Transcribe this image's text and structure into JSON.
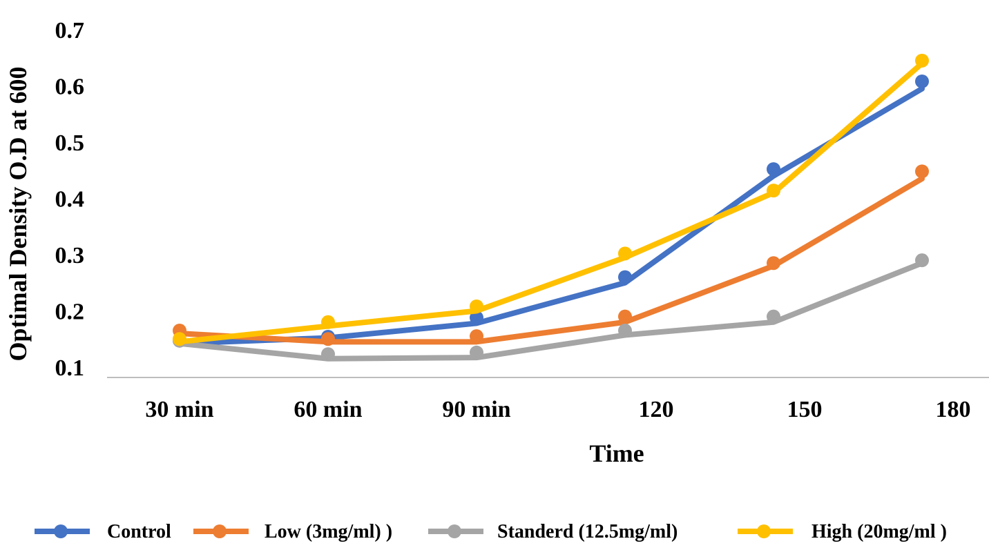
{
  "chart_data": {
    "type": "line",
    "title": "",
    "xlabel": "Time",
    "ylabel": "Optimal Density O.D at 600",
    "categories": [
      "30 min",
      "60 min",
      "90 min",
      "120",
      "150",
      "180"
    ],
    "ylim": [
      0.1,
      0.7
    ],
    "yticks": [
      "0.1",
      "0.2",
      "0.3",
      "0.4",
      "0.5",
      "0.6",
      "0.7"
    ],
    "grid": false,
    "legend_position": "bottom",
    "series": [
      {
        "name": "Control",
        "color": "#4472C4",
        "values": [
          0.147,
          0.154,
          0.188,
          0.26,
          0.452,
          0.608
        ],
        "trend": [
          0.142,
          0.152,
          0.178,
          0.25,
          0.44,
          0.595
        ]
      },
      {
        "name": "Low (3mg/ml) )",
        "color": "#ED7D31",
        "values": [
          0.165,
          0.15,
          0.155,
          0.19,
          0.285,
          0.448
        ],
        "trend": [
          0.16,
          0.145,
          0.145,
          0.18,
          0.28,
          0.435
        ]
      },
      {
        "name": "Standerd (12.5mg/ml)",
        "color": "#A5A5A5",
        "values": [
          0.147,
          0.123,
          0.126,
          0.165,
          0.19,
          0.29
        ],
        "trend": [
          0.142,
          0.115,
          0.117,
          0.157,
          0.18,
          0.285
        ]
      },
      {
        "name": "High (20mg/ml )",
        "color": "#FFC000",
        "values": [
          0.15,
          0.18,
          0.208,
          0.302,
          0.414,
          0.645
        ],
        "trend": [
          0.145,
          0.173,
          0.2,
          0.295,
          0.41,
          0.64
        ]
      }
    ]
  }
}
